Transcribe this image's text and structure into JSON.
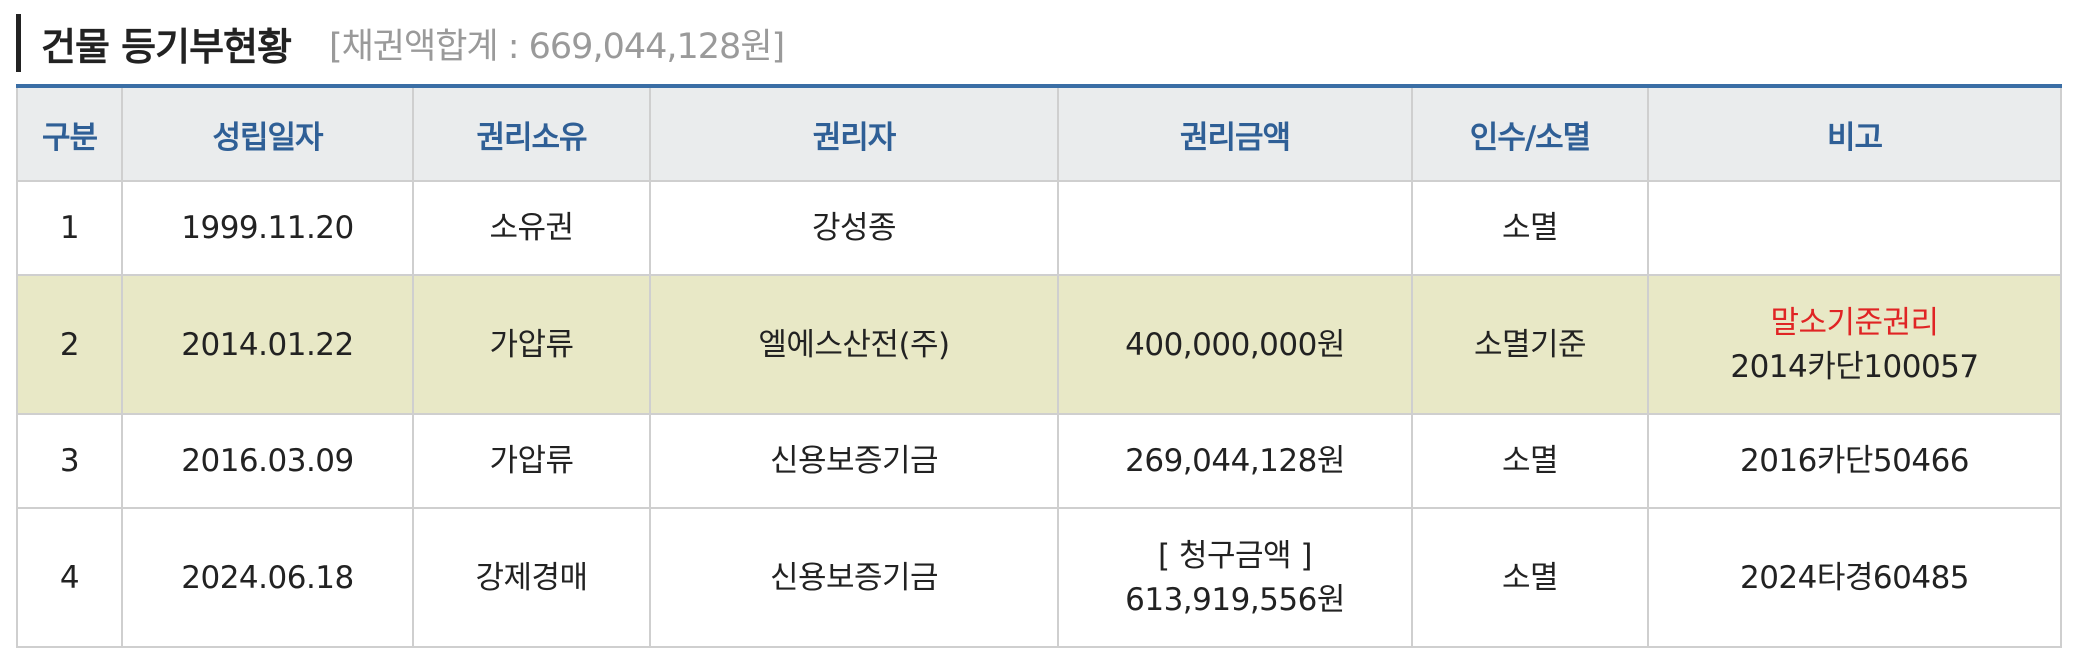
{
  "header": {
    "title": "건물 등기부현황",
    "subtitle": "[채권액합계 : 669,044,128원]"
  },
  "colors": {
    "header_text": "#2f5f96",
    "table_top_border": "#3a6ea5",
    "highlight_row_bg": "#e8e8c6",
    "warning_text": "#e02424"
  },
  "table": {
    "columns": [
      "구분",
      "성립일자",
      "권리소유",
      "권리자",
      "권리금액",
      "인수/소멸",
      "비고"
    ],
    "rows": [
      {
        "no": "1",
        "date": "1999.11.20",
        "right_type": "소유권",
        "holder": "강성종",
        "amount_label": "",
        "amount": "",
        "status": "소멸",
        "note_main": "",
        "note_sub": "",
        "highlighted": false
      },
      {
        "no": "2",
        "date": "2014.01.22",
        "right_type": "가압류",
        "holder": "엘에스산전(주)",
        "amount_label": "",
        "amount": "400,000,000원",
        "status": "소멸기준",
        "note_main": "말소기준권리",
        "note_sub": "2014카단100057",
        "highlighted": true
      },
      {
        "no": "3",
        "date": "2016.03.09",
        "right_type": "가압류",
        "holder": "신용보증기금",
        "amount_label": "",
        "amount": "269,044,128원",
        "status": "소멸",
        "note_main": "2016카단50466",
        "note_sub": "",
        "highlighted": false
      },
      {
        "no": "4",
        "date": "2024.06.18",
        "right_type": "강제경매",
        "holder": "신용보증기금",
        "amount_label": "[ 청구금액 ]",
        "amount": "613,919,556원",
        "status": "소멸",
        "note_main": "2024타경60485",
        "note_sub": "",
        "highlighted": false
      }
    ]
  }
}
